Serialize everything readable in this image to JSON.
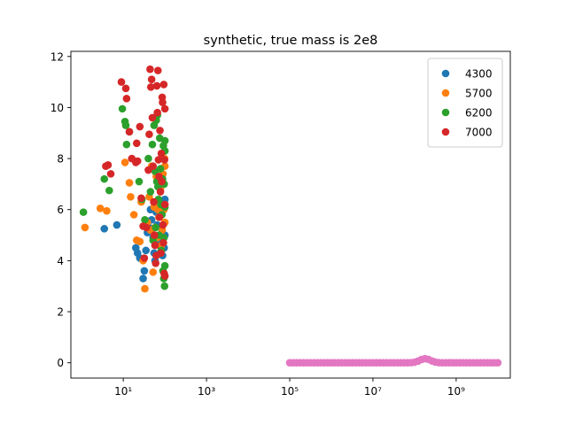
{
  "chart_data": {
    "type": "scatter",
    "title": "synthetic, true mass is 2e8",
    "xlabel": "",
    "ylabel": "",
    "xscale": "log",
    "xlim": [
      0.55,
      20000000000
    ],
    "ylim": [
      -0.6,
      12.2
    ],
    "xticks": [
      {
        "value": 10,
        "label": "10¹"
      },
      {
        "value": 1000,
        "label": "10³"
      },
      {
        "value": 100000,
        "label": "10⁵"
      },
      {
        "value": 10000000,
        "label": "10⁷"
      },
      {
        "value": 1000000000,
        "label": "10⁹"
      }
    ],
    "yticks": [
      0,
      2,
      4,
      6,
      8,
      10,
      12
    ],
    "legend_position": "top-right",
    "grid": false,
    "series": [
      {
        "name": "4300",
        "color": "#1f77b4",
        "points": [
          [
            3.5,
            5.25
          ],
          [
            7,
            5.4
          ],
          [
            20,
            4.5
          ],
          [
            22,
            4.3
          ],
          [
            25,
            4.1
          ],
          [
            30,
            3.3
          ],
          [
            32,
            3.6
          ],
          [
            35,
            4.4
          ],
          [
            38,
            5.1
          ],
          [
            42,
            5.3
          ],
          [
            45,
            6.0
          ],
          [
            48,
            5.6
          ],
          [
            52,
            4.9
          ],
          [
            55,
            4.3
          ],
          [
            58,
            4.0
          ],
          [
            62,
            5.9
          ],
          [
            65,
            5.4
          ],
          [
            70,
            4.8
          ],
          [
            75,
            4.6
          ],
          [
            80,
            5.8
          ],
          [
            85,
            6.2
          ],
          [
            88,
            4.2
          ],
          [
            92,
            5.0
          ],
          [
            96,
            4.5
          ],
          [
            100,
            6.4
          ],
          [
            100,
            5.0
          ]
        ]
      },
      {
        "name": "5700",
        "color": "#ff7f0e",
        "points": [
          [
            1.2,
            5.3
          ],
          [
            2.8,
            6.05
          ],
          [
            4,
            5.95
          ],
          [
            11,
            7.85
          ],
          [
            14,
            7.05
          ],
          [
            15,
            6.5
          ],
          [
            18,
            5.8
          ],
          [
            21,
            4.8
          ],
          [
            25,
            4.75
          ],
          [
            27,
            6.3
          ],
          [
            30,
            4.0
          ],
          [
            33,
            2.9
          ],
          [
            38,
            5.5
          ],
          [
            42,
            6.5
          ],
          [
            45,
            5.2
          ],
          [
            48,
            7.7
          ],
          [
            52,
            3.55
          ],
          [
            55,
            6.1
          ],
          [
            58,
            5.3
          ],
          [
            62,
            7.3
          ],
          [
            68,
            6.0
          ],
          [
            72,
            5.7
          ],
          [
            78,
            6.8
          ],
          [
            82,
            4.6
          ],
          [
            86,
            5.2
          ],
          [
            90,
            7.4
          ],
          [
            95,
            6.0
          ],
          [
            98,
            8.0
          ],
          [
            100,
            5.5
          ],
          [
            100,
            7.7
          ],
          [
            80,
            4.3
          ],
          [
            65,
            4.9
          ]
        ]
      },
      {
        "name": "6200",
        "color": "#2ca02c",
        "points": [
          [
            1.1,
            5.9
          ],
          [
            3.5,
            7.2
          ],
          [
            4.6,
            6.75
          ],
          [
            9.5,
            9.95
          ],
          [
            11,
            9.45
          ],
          [
            11.5,
            9.3
          ],
          [
            12,
            8.55
          ],
          [
            14,
            9.05
          ],
          [
            24,
            7.1
          ],
          [
            28,
            6.4
          ],
          [
            33,
            5.6
          ],
          [
            40,
            8.0
          ],
          [
            45,
            6.7
          ],
          [
            50,
            8.55
          ],
          [
            52,
            4.8
          ],
          [
            55,
            9.3
          ],
          [
            58,
            7.5
          ],
          [
            60,
            5.3
          ],
          [
            62,
            9.5
          ],
          [
            64,
            7.1
          ],
          [
            66,
            9.7
          ],
          [
            70,
            6.4
          ],
          [
            72,
            5.0
          ],
          [
            75,
            8.8
          ],
          [
            78,
            7.6
          ],
          [
            80,
            6.2
          ],
          [
            82,
            4.4
          ],
          [
            85,
            5.8
          ],
          [
            88,
            7.2
          ],
          [
            90,
            3.6
          ],
          [
            92,
            8.5
          ],
          [
            94,
            3.3
          ],
          [
            96,
            7.0
          ],
          [
            98,
            3.0
          ],
          [
            100,
            8.7
          ],
          [
            100,
            6.1
          ],
          [
            100,
            3.8
          ],
          [
            100,
            8.3
          ],
          [
            95,
            4.9
          ],
          [
            68,
            6.9
          ]
        ]
      },
      {
        "name": "7000",
        "color": "#d62728",
        "points": [
          [
            3.8,
            7.7
          ],
          [
            4.3,
            7.75
          ],
          [
            5,
            7.4
          ],
          [
            9,
            11.0
          ],
          [
            11.5,
            10.75
          ],
          [
            12,
            10.35
          ],
          [
            14,
            9.05
          ],
          [
            16,
            8.0
          ],
          [
            20,
            7.85
          ],
          [
            21,
            8.6
          ],
          [
            22,
            7.9
          ],
          [
            25,
            9.25
          ],
          [
            27,
            6.45
          ],
          [
            30,
            5.35
          ],
          [
            32,
            4.1
          ],
          [
            36,
            5.3
          ],
          [
            40,
            7.55
          ],
          [
            42,
            8.95
          ],
          [
            44,
            11.5
          ],
          [
            46,
            10.8
          ],
          [
            48,
            11.1
          ],
          [
            50,
            9.6
          ],
          [
            52,
            7.7
          ],
          [
            54,
            6.3
          ],
          [
            56,
            5.0
          ],
          [
            58,
            4.6
          ],
          [
            60,
            3.9
          ],
          [
            62,
            4.2
          ],
          [
            64,
            10.85
          ],
          [
            66,
            9.8
          ],
          [
            68,
            11.45
          ],
          [
            70,
            7.95
          ],
          [
            72,
            7.3
          ],
          [
            74,
            5.7
          ],
          [
            76,
            9.1
          ],
          [
            78,
            6.7
          ],
          [
            80,
            4.3
          ],
          [
            82,
            8.2
          ],
          [
            84,
            7.1
          ],
          [
            86,
            10.4
          ],
          [
            88,
            10.2
          ],
          [
            90,
            5.4
          ],
          [
            92,
            4.7
          ],
          [
            94,
            10.9
          ],
          [
            96,
            3.5
          ],
          [
            98,
            7.95
          ],
          [
            100,
            3.4
          ],
          [
            100,
            9.95
          ],
          [
            100,
            6.2
          ]
        ]
      }
    ],
    "curve": {
      "color": "#e377c2",
      "x_start": 100000,
      "x_end": 10000000000,
      "count": 61,
      "peak_x": 180000000,
      "peak_y": 0.16,
      "peak_width_decades": 0.18
    }
  }
}
